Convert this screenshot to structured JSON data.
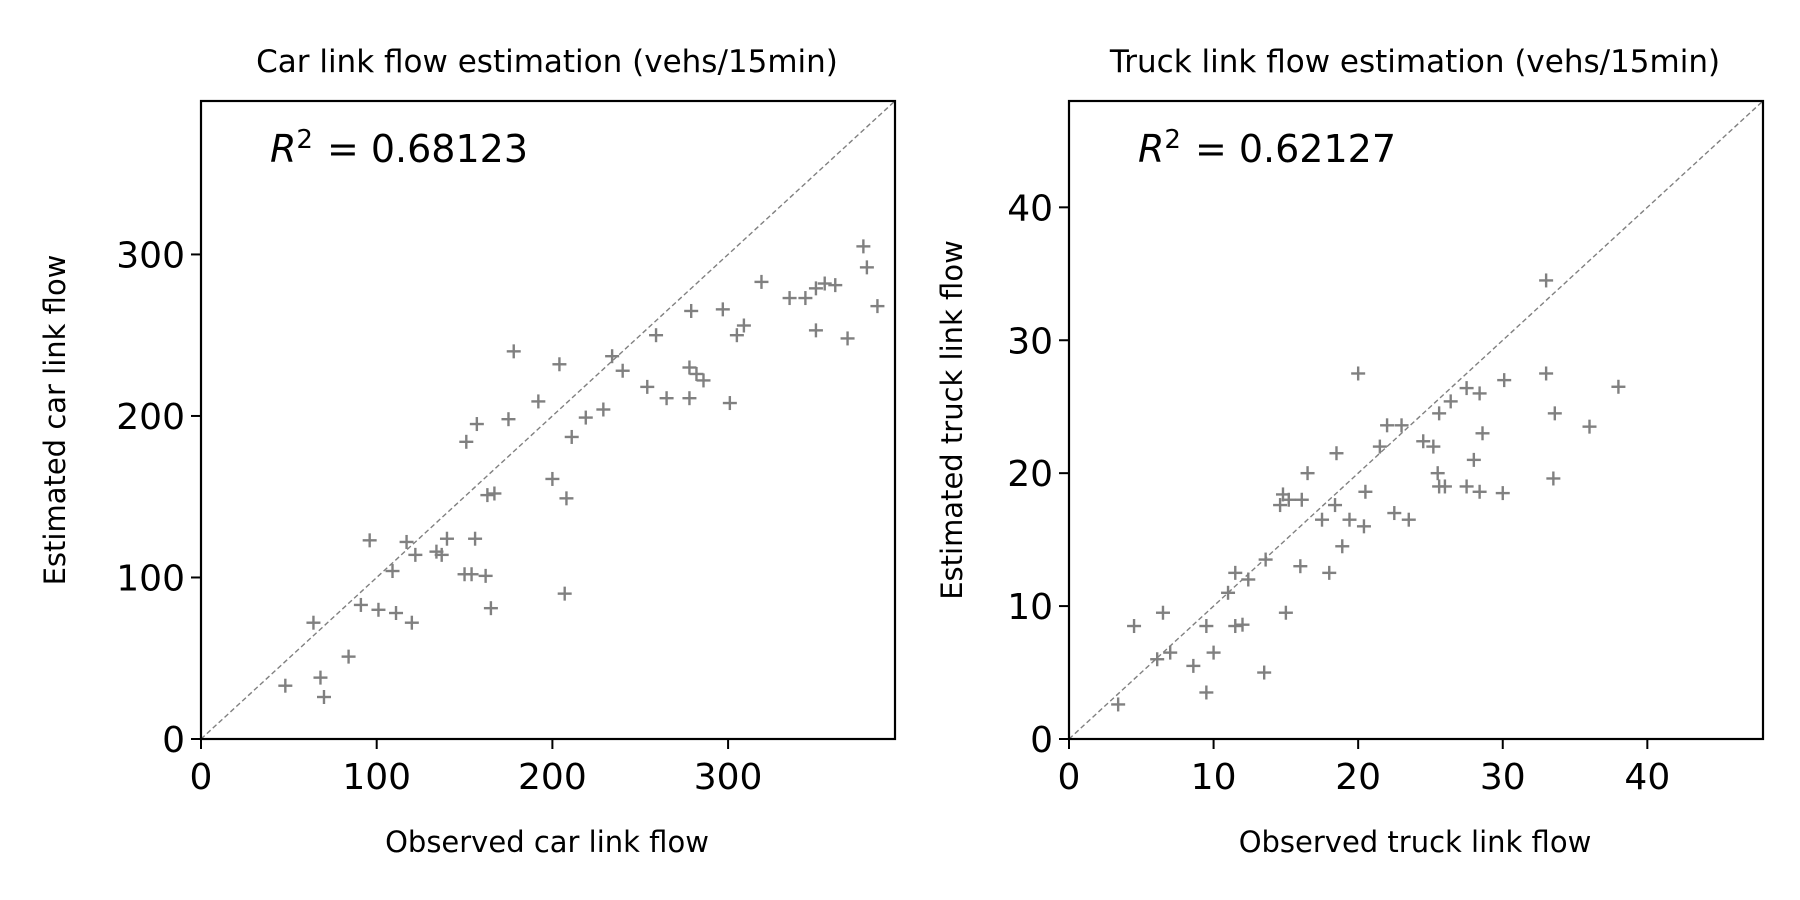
{
  "chart_data": [
    {
      "type": "scatter",
      "title": "Car link flow estimation (vehs/15min)",
      "xlabel": "Observed car link flow",
      "ylabel": "Estimated car link flow",
      "annotation": {
        "prefix": "R",
        "superscript": "2",
        "value": "= 0.68123"
      },
      "xlim": [
        0,
        395
      ],
      "ylim": [
        0,
        395
      ],
      "xticks": [
        0,
        100,
        200,
        300
      ],
      "yticks": [
        0,
        100,
        200,
        300
      ],
      "diagonal": true,
      "marker": "+",
      "color": "#808080",
      "points": [
        [
          48,
          33
        ],
        [
          64,
          72
        ],
        [
          68,
          38
        ],
        [
          70,
          26
        ],
        [
          84,
          51
        ],
        [
          91,
          83
        ],
        [
          96,
          123
        ],
        [
          101,
          80
        ],
        [
          109,
          104
        ],
        [
          111,
          78
        ],
        [
          117,
          122
        ],
        [
          120,
          72
        ],
        [
          122,
          114
        ],
        [
          134,
          116
        ],
        [
          137,
          114
        ],
        [
          140,
          124
        ],
        [
          150,
          102
        ],
        [
          151,
          184
        ],
        [
          154,
          102
        ],
        [
          156,
          124
        ],
        [
          157,
          195
        ],
        [
          162,
          101
        ],
        [
          163,
          151
        ],
        [
          165,
          81
        ],
        [
          167,
          152
        ],
        [
          175,
          198
        ],
        [
          178,
          240
        ],
        [
          192,
          209
        ],
        [
          200,
          161
        ],
        [
          204,
          232
        ],
        [
          207,
          90
        ],
        [
          208,
          149
        ],
        [
          211,
          187
        ],
        [
          219,
          199
        ],
        [
          229,
          204
        ],
        [
          234,
          237
        ],
        [
          240,
          228
        ],
        [
          254,
          218
        ],
        [
          259,
          250
        ],
        [
          265,
          211
        ],
        [
          278,
          230
        ],
        [
          278,
          211
        ],
        [
          279,
          265
        ],
        [
          282,
          226
        ],
        [
          286,
          222
        ],
        [
          297,
          266
        ],
        [
          301,
          208
        ],
        [
          305,
          250
        ],
        [
          309,
          256
        ],
        [
          319,
          283
        ],
        [
          335,
          273
        ],
        [
          344,
          273
        ],
        [
          350,
          253
        ],
        [
          350,
          279
        ],
        [
          355,
          282
        ],
        [
          361,
          281
        ],
        [
          368,
          248
        ],
        [
          377,
          305
        ],
        [
          379,
          292
        ],
        [
          385,
          268
        ]
      ]
    },
    {
      "type": "scatter",
      "title": "Truck link flow estimation (vehs/15min)",
      "xlabel": "Observed truck link flow",
      "ylabel": "Estimated truck link flow",
      "annotation": {
        "prefix": "R",
        "superscript": "2",
        "value": "= 0.62127"
      },
      "xlim": [
        0,
        48
      ],
      "ylim": [
        0,
        48
      ],
      "xticks": [
        0,
        10,
        20,
        30,
        40
      ],
      "yticks": [
        0,
        10,
        20,
        30,
        40
      ],
      "diagonal": true,
      "marker": "+",
      "color": "#808080",
      "points": [
        [
          3.4,
          2.6
        ],
        [
          4.5,
          8.5
        ],
        [
          6.1,
          6.0
        ],
        [
          6.5,
          9.5
        ],
        [
          7.0,
          6.5
        ],
        [
          8.6,
          5.5
        ],
        [
          9.5,
          3.5
        ],
        [
          9.5,
          8.5
        ],
        [
          10.0,
          6.5
        ],
        [
          11.0,
          11.0
        ],
        [
          11.5,
          8.5
        ],
        [
          11.5,
          12.5
        ],
        [
          12.0,
          8.6
        ],
        [
          12.4,
          12.0
        ],
        [
          13.5,
          5.0
        ],
        [
          13.6,
          13.5
        ],
        [
          14.6,
          17.6
        ],
        [
          14.8,
          18.4
        ],
        [
          15.0,
          9.5
        ],
        [
          15.2,
          18.0
        ],
        [
          16.0,
          13.0
        ],
        [
          16.1,
          18.0
        ],
        [
          16.5,
          20.0
        ],
        [
          17.5,
          16.5
        ],
        [
          18.0,
          12.5
        ],
        [
          18.4,
          17.6
        ],
        [
          18.5,
          21.5
        ],
        [
          18.9,
          14.5
        ],
        [
          19.4,
          16.5
        ],
        [
          20.0,
          27.5
        ],
        [
          20.4,
          16.0
        ],
        [
          20.5,
          18.6
        ],
        [
          21.5,
          22.0
        ],
        [
          22.0,
          23.6
        ],
        [
          22.5,
          17.0
        ],
        [
          23.0,
          23.6
        ],
        [
          23.5,
          16.5
        ],
        [
          24.5,
          22.4
        ],
        [
          25.2,
          22.0
        ],
        [
          25.5,
          20.0
        ],
        [
          25.6,
          24.5
        ],
        [
          25.6,
          19.0
        ],
        [
          26.0,
          19.0
        ],
        [
          26.4,
          25.4
        ],
        [
          27.5,
          26.4
        ],
        [
          27.5,
          19.0
        ],
        [
          28.0,
          21.0
        ],
        [
          28.4,
          26.0
        ],
        [
          28.4,
          18.6
        ],
        [
          28.6,
          23.0
        ],
        [
          30.0,
          18.5
        ],
        [
          30.1,
          27.0
        ],
        [
          33.0,
          34.5
        ],
        [
          33.0,
          27.5
        ],
        [
          33.5,
          19.6
        ],
        [
          33.6,
          24.5
        ],
        [
          36.0,
          23.5
        ],
        [
          38.0,
          26.5
        ]
      ]
    }
  ]
}
